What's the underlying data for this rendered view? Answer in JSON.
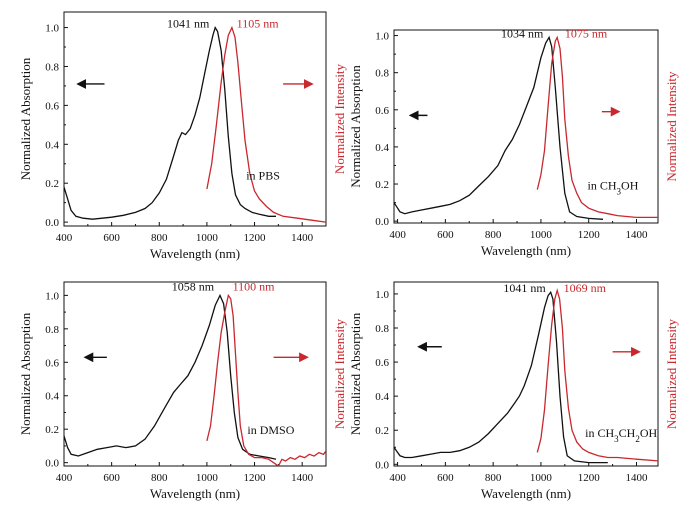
{
  "chart_data": [
    {
      "type": "line",
      "xlabel": "Wavelength (nm)",
      "ylabel": "Normalized Absorption",
      "y2label": "Normalized Intensity",
      "xlim": [
        400,
        1500
      ],
      "ylim": [
        -0.02,
        1.08
      ],
      "xticks": [
        "400",
        "600",
        "800",
        "1000",
        "1200",
        "1400"
      ],
      "yticks": [
        "0.0",
        "0.2",
        "0.4",
        "0.6",
        "0.8",
        "1.0"
      ],
      "solvent_text": "in PBS",
      "abs_peak_label": "1041 nm",
      "em_peak_label": "1105 nm",
      "absorption": [
        [
          400,
          0.18
        ],
        [
          415,
          0.12
        ],
        [
          430,
          0.06
        ],
        [
          450,
          0.03
        ],
        [
          480,
          0.02
        ],
        [
          520,
          0.015
        ],
        [
          560,
          0.02
        ],
        [
          600,
          0.025
        ],
        [
          650,
          0.035
        ],
        [
          700,
          0.05
        ],
        [
          740,
          0.07
        ],
        [
          770,
          0.1
        ],
        [
          800,
          0.15
        ],
        [
          830,
          0.22
        ],
        [
          860,
          0.34
        ],
        [
          880,
          0.42
        ],
        [
          895,
          0.46
        ],
        [
          910,
          0.45
        ],
        [
          930,
          0.48
        ],
        [
          950,
          0.55
        ],
        [
          970,
          0.64
        ],
        [
          990,
          0.76
        ],
        [
          1010,
          0.88
        ],
        [
          1025,
          0.96
        ],
        [
          1035,
          1.0
        ],
        [
          1045,
          0.98
        ],
        [
          1060,
          0.88
        ],
        [
          1075,
          0.68
        ],
        [
          1090,
          0.44
        ],
        [
          1105,
          0.25
        ],
        [
          1120,
          0.14
        ],
        [
          1140,
          0.09
        ],
        [
          1160,
          0.07
        ],
        [
          1190,
          0.05
        ],
        [
          1220,
          0.04
        ],
        [
          1260,
          0.03
        ],
        [
          1290,
          0.03
        ]
      ],
      "emission": [
        [
          1000,
          0.17
        ],
        [
          1020,
          0.3
        ],
        [
          1040,
          0.5
        ],
        [
          1060,
          0.72
        ],
        [
          1075,
          0.86
        ],
        [
          1090,
          0.96
        ],
        [
          1105,
          1.0
        ],
        [
          1118,
          0.95
        ],
        [
          1130,
          0.82
        ],
        [
          1145,
          0.62
        ],
        [
          1160,
          0.42
        ],
        [
          1180,
          0.25
        ],
        [
          1200,
          0.16
        ],
        [
          1220,
          0.12
        ],
        [
          1250,
          0.08
        ],
        [
          1280,
          0.05
        ],
        [
          1320,
          0.03
        ],
        [
          1380,
          0.02
        ],
        [
          1440,
          0.01
        ],
        [
          1500,
          0.0
        ]
      ],
      "abs_label_pos": [
        1010,
        1.0
      ],
      "em_label_pos": [
        1125,
        1.0
      ],
      "solvent_pos": [
        1165,
        0.22
      ],
      "black_arrow": [
        [
          570,
          0.71
        ],
        [
          460,
          0.71
        ]
      ],
      "red_arrow": [
        [
          1320,
          0.71
        ],
        [
          1440,
          0.71
        ]
      ]
    },
    {
      "type": "line",
      "xlabel": "Wavelength (nm)",
      "ylabel": "Normalized Absorption",
      "y2label": "Normalized Intensity",
      "xlim": [
        385,
        1490
      ],
      "ylim": [
        -0.01,
        1.03
      ],
      "xticks": [
        "400",
        "600",
        "800",
        "1000",
        "1200",
        "1400"
      ],
      "yticks": [
        "0.0",
        "0.2",
        "0.4",
        "0.6",
        "0.8",
        "1.0"
      ],
      "solvent_text": "in CH",
      "solvent_sub": "3",
      "solvent_rest": "OH",
      "abs_peak_label": "1034 nm",
      "em_peak_label": "1075 nm",
      "absorption": [
        [
          385,
          0.1
        ],
        [
          395,
          0.08
        ],
        [
          410,
          0.05
        ],
        [
          430,
          0.04
        ],
        [
          460,
          0.05
        ],
        [
          500,
          0.06
        ],
        [
          540,
          0.07
        ],
        [
          580,
          0.08
        ],
        [
          620,
          0.09
        ],
        [
          660,
          0.11
        ],
        [
          700,
          0.14
        ],
        [
          740,
          0.19
        ],
        [
          780,
          0.24
        ],
        [
          820,
          0.3
        ],
        [
          850,
          0.38
        ],
        [
          880,
          0.44
        ],
        [
          910,
          0.52
        ],
        [
          940,
          0.62
        ],
        [
          970,
          0.72
        ],
        [
          1000,
          0.88
        ],
        [
          1020,
          0.96
        ],
        [
          1034,
          0.99
        ],
        [
          1045,
          0.94
        ],
        [
          1060,
          0.72
        ],
        [
          1080,
          0.4
        ],
        [
          1100,
          0.15
        ],
        [
          1120,
          0.05
        ],
        [
          1150,
          0.025
        ],
        [
          1200,
          0.015
        ],
        [
          1260,
          0.01
        ]
      ],
      "emission": [
        [
          985,
          0.17
        ],
        [
          1000,
          0.25
        ],
        [
          1015,
          0.38
        ],
        [
          1030,
          0.62
        ],
        [
          1045,
          0.85
        ],
        [
          1060,
          0.97
        ],
        [
          1068,
          0.99
        ],
        [
          1080,
          0.93
        ],
        [
          1090,
          0.78
        ],
        [
          1100,
          0.55
        ],
        [
          1115,
          0.35
        ],
        [
          1130,
          0.22
        ],
        [
          1150,
          0.15
        ],
        [
          1170,
          0.1
        ],
        [
          1200,
          0.07
        ],
        [
          1240,
          0.05
        ],
        [
          1280,
          0.04
        ],
        [
          1320,
          0.03
        ],
        [
          1400,
          0.02
        ],
        [
          1490,
          0.02
        ]
      ],
      "abs_label_pos": [
        1010,
        0.99
      ],
      "em_label_pos": [
        1100,
        0.99
      ],
      "solvent_pos": [
        1195,
        0.17
      ],
      "black_arrow": [
        [
          525,
          0.57
        ],
        [
          455,
          0.57
        ]
      ],
      "red_arrow": [
        [
          1255,
          0.59
        ],
        [
          1325,
          0.59
        ]
      ]
    },
    {
      "type": "line",
      "xlabel": "Wavelength (nm)",
      "ylabel": "Normalized Absorption",
      "y2label": "Normalized Intensity",
      "xlim": [
        400,
        1500
      ],
      "ylim": [
        -0.02,
        1.08
      ],
      "xticks": [
        "400",
        "600",
        "800",
        "1000",
        "1200",
        "1400"
      ],
      "yticks": [
        "0.0",
        "0.2",
        "0.4",
        "0.6",
        "0.8",
        "1.0"
      ],
      "solvent_text": "in DMSO",
      "abs_peak_label": "1058 nm",
      "em_peak_label": "1100 nm",
      "absorption": [
        [
          400,
          0.16
        ],
        [
          415,
          0.09
        ],
        [
          430,
          0.05
        ],
        [
          460,
          0.04
        ],
        [
          500,
          0.06
        ],
        [
          540,
          0.08
        ],
        [
          580,
          0.09
        ],
        [
          620,
          0.1
        ],
        [
          660,
          0.09
        ],
        [
          700,
          0.1
        ],
        [
          740,
          0.14
        ],
        [
          780,
          0.22
        ],
        [
          820,
          0.32
        ],
        [
          860,
          0.42
        ],
        [
          890,
          0.47
        ],
        [
          920,
          0.52
        ],
        [
          950,
          0.6
        ],
        [
          980,
          0.7
        ],
        [
          1010,
          0.82
        ],
        [
          1035,
          0.94
        ],
        [
          1055,
          1.0
        ],
        [
          1070,
          0.95
        ],
        [
          1085,
          0.78
        ],
        [
          1100,
          0.52
        ],
        [
          1115,
          0.3
        ],
        [
          1130,
          0.15
        ],
        [
          1150,
          0.08
        ],
        [
          1180,
          0.05
        ],
        [
          1220,
          0.04
        ],
        [
          1260,
          0.03
        ],
        [
          1290,
          0.02
        ]
      ],
      "emission": [
        [
          1000,
          0.13
        ],
        [
          1015,
          0.22
        ],
        [
          1030,
          0.4
        ],
        [
          1045,
          0.6
        ],
        [
          1060,
          0.78
        ],
        [
          1075,
          0.9
        ],
        [
          1090,
          1.0
        ],
        [
          1100,
          0.98
        ],
        [
          1110,
          0.88
        ],
        [
          1120,
          0.65
        ],
        [
          1130,
          0.42
        ],
        [
          1140,
          0.22
        ],
        [
          1155,
          0.1
        ],
        [
          1175,
          0.05
        ],
        [
          1200,
          0.03
        ],
        [
          1230,
          0.03
        ],
        [
          1260,
          0.02
        ],
        [
          1280,
          0.0
        ],
        [
          1300,
          -0.02
        ],
        [
          1315,
          0.02
        ],
        [
          1330,
          0.01
        ],
        [
          1350,
          0.03
        ],
        [
          1370,
          0.02
        ],
        [
          1390,
          0.04
        ],
        [
          1410,
          0.03
        ],
        [
          1430,
          0.05
        ],
        [
          1450,
          0.04
        ],
        [
          1470,
          0.06
        ],
        [
          1490,
          0.05
        ],
        [
          1500,
          0.07
        ]
      ],
      "abs_label_pos": [
        1030,
        1.03
      ],
      "em_label_pos": [
        1108,
        1.03
      ],
      "solvent_pos": [
        1170,
        0.17
      ],
      "black_arrow": [
        [
          580,
          0.63
        ],
        [
          490,
          0.63
        ]
      ],
      "red_arrow": [
        [
          1280,
          0.63
        ],
        [
          1420,
          0.63
        ]
      ]
    },
    {
      "type": "line",
      "xlabel": "Wavelength (nm)",
      "ylabel": "Normalized Absorption",
      "y2label": "Normalized Intensity",
      "xlim": [
        385,
        1490
      ],
      "ylim": [
        -0.01,
        1.07
      ],
      "xticks": [
        "400",
        "600",
        "800",
        "1000",
        "1200",
        "1400"
      ],
      "yticks": [
        "0.0",
        "0.2",
        "0.4",
        "0.6",
        "0.8",
        "1.0"
      ],
      "solvent_text": "in CH",
      "solvent_sub": "3",
      "solvent_rest": "CH",
      "solvent_sub2": "2",
      "solvent_rest2": "OH",
      "abs_peak_label": "1041 nm",
      "em_peak_label": "1069 nm",
      "absorption": [
        [
          385,
          0.1
        ],
        [
          395,
          0.08
        ],
        [
          410,
          0.05
        ],
        [
          430,
          0.04
        ],
        [
          460,
          0.04
        ],
        [
          500,
          0.05
        ],
        [
          540,
          0.06
        ],
        [
          580,
          0.07
        ],
        [
          620,
          0.07
        ],
        [
          660,
          0.08
        ],
        [
          700,
          0.1
        ],
        [
          740,
          0.13
        ],
        [
          780,
          0.18
        ],
        [
          820,
          0.24
        ],
        [
          860,
          0.3
        ],
        [
          890,
          0.36
        ],
        [
          910,
          0.4
        ],
        [
          930,
          0.46
        ],
        [
          960,
          0.58
        ],
        [
          990,
          0.76
        ],
        [
          1015,
          0.92
        ],
        [
          1030,
          0.99
        ],
        [
          1041,
          1.01
        ],
        [
          1050,
          0.97
        ],
        [
          1065,
          0.72
        ],
        [
          1080,
          0.4
        ],
        [
          1095,
          0.16
        ],
        [
          1110,
          0.05
        ],
        [
          1140,
          0.02
        ],
        [
          1200,
          0.01
        ],
        [
          1280,
          0.01
        ]
      ],
      "emission": [
        [
          985,
          0.07
        ],
        [
          1000,
          0.15
        ],
        [
          1015,
          0.32
        ],
        [
          1030,
          0.58
        ],
        [
          1045,
          0.82
        ],
        [
          1058,
          0.97
        ],
        [
          1068,
          1.02
        ],
        [
          1078,
          0.97
        ],
        [
          1090,
          0.8
        ],
        [
          1100,
          0.55
        ],
        [
          1115,
          0.33
        ],
        [
          1130,
          0.2
        ],
        [
          1150,
          0.13
        ],
        [
          1175,
          0.09
        ],
        [
          1200,
          0.07
        ],
        [
          1240,
          0.05
        ],
        [
          1280,
          0.04
        ],
        [
          1320,
          0.04
        ],
        [
          1400,
          0.03
        ],
        [
          1490,
          0.02
        ]
      ],
      "abs_label_pos": [
        1020,
        1.01
      ],
      "em_label_pos": [
        1095,
        1.01
      ],
      "solvent_pos": [
        1185,
        0.16
      ],
      "black_arrow": [
        [
          585,
          0.69
        ],
        [
          490,
          0.69
        ]
      ],
      "red_arrow": [
        [
          1300,
          0.66
        ],
        [
          1410,
          0.66
        ]
      ]
    }
  ]
}
